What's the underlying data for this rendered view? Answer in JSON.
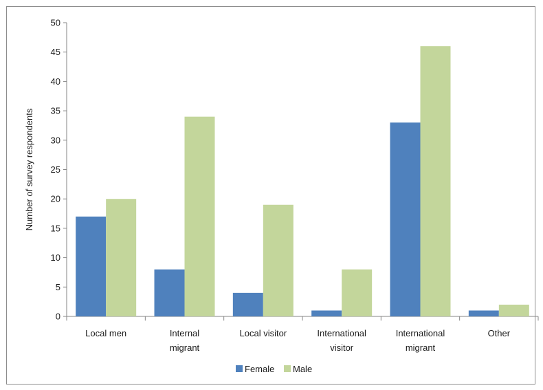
{
  "chart_data": {
    "type": "bar",
    "categories": [
      [
        "Local men"
      ],
      [
        "Internal",
        "migrant"
      ],
      [
        "Local visitor"
      ],
      [
        "International",
        "visitor"
      ],
      [
        "International",
        "migrant"
      ],
      [
        "Other"
      ]
    ],
    "series": [
      {
        "name": "Female",
        "color": "#4f81bd",
        "values": [
          17,
          8,
          4,
          1,
          33,
          1
        ]
      },
      {
        "name": "Male",
        "color": "#c3d69b",
        "values": [
          20,
          34,
          19,
          8,
          46,
          2
        ]
      }
    ],
    "ylabel": "Number of survey respondents",
    "ylim": [
      0,
      50
    ],
    "yticks": [
      0,
      5,
      10,
      15,
      20,
      25,
      30,
      35,
      40,
      45,
      50
    ],
    "grid": false,
    "legend_position": "bottom"
  }
}
